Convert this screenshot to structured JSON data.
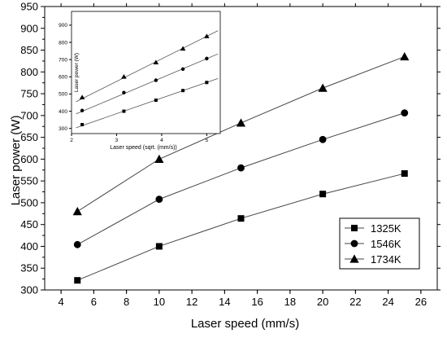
{
  "chart_data": [
    {
      "type": "line",
      "xlabel": "Laser speed (mm/s)",
      "ylabel": "Laser power (W)",
      "xlim": [
        3,
        27
      ],
      "ylim": [
        300,
        950
      ],
      "x_ticks": [
        4,
        6,
        8,
        10,
        12,
        14,
        16,
        18,
        20,
        22,
        24,
        26
      ],
      "y_ticks": [
        300,
        350,
        400,
        450,
        500,
        550,
        600,
        650,
        700,
        750,
        800,
        850,
        900,
        950
      ],
      "x": [
        5,
        10,
        15,
        20,
        25
      ],
      "series": [
        {
          "name": "1325K",
          "marker": "square",
          "values": [
            322,
            400,
            464,
            520,
            567
          ]
        },
        {
          "name": "1546K",
          "marker": "circle",
          "values": [
            404,
            508,
            580,
            645,
            706
          ]
        },
        {
          "name": "1734K",
          "marker": "triangle",
          "values": [
            480,
            600,
            683,
            763,
            835
          ]
        }
      ],
      "legend_position": "bottom-right",
      "line_color": "#444444",
      "marker_color": "#000000"
    },
    {
      "type": "scatter",
      "xlabel": "Laser speed (sqrt. (mm/s))",
      "ylabel": "Laser power (W)",
      "xlim": [
        2,
        5.3
      ],
      "ylim": [
        270,
        980
      ],
      "x_ticks": [
        2,
        3,
        4,
        5
      ],
      "y_ticks": [
        300,
        400,
        500,
        600,
        700,
        800,
        900
      ],
      "x": [
        2.236,
        3.162,
        3.873,
        4.472,
        5.0
      ],
      "series": [
        {
          "name": "1325K",
          "marker": "square",
          "values": [
            322,
            400,
            464,
            520,
            567
          ],
          "fit": [
            [
              2.1,
              304
            ],
            [
              5.25,
              590
            ]
          ]
        },
        {
          "name": "1546K",
          "marker": "circle",
          "values": [
            404,
            508,
            580,
            645,
            706
          ],
          "fit": [
            [
              2.1,
              384
            ],
            [
              5.25,
              733
            ]
          ]
        },
        {
          "name": "1734K",
          "marker": "triangle",
          "values": [
            480,
            600,
            683,
            763,
            835
          ],
          "fit": [
            [
              2.1,
              455
            ],
            [
              5.25,
              868
            ]
          ]
        }
      ],
      "position": "inset-top-left",
      "line_color": "#555555"
    }
  ]
}
